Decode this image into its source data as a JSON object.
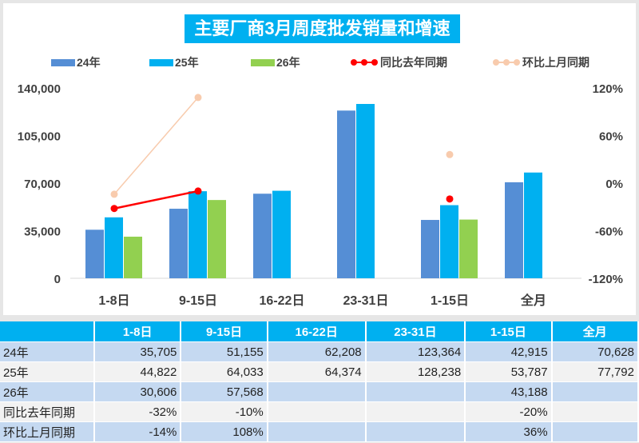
{
  "chart_data": {
    "type": "bar",
    "title": "主要厂商3月周度批发销量和增速",
    "categories": [
      "1-8日",
      "9-15日",
      "16-22日",
      "23-31日",
      "1-15日",
      "全月"
    ],
    "series": [
      {
        "name": "24年",
        "type": "bar",
        "axis": "left",
        "color": "#558ed5",
        "values": [
          35705,
          51155,
          62208,
          123364,
          42915,
          70628
        ]
      },
      {
        "name": "25年",
        "type": "bar",
        "axis": "left",
        "color": "#00b0f0",
        "values": [
          44822,
          64033,
          64374,
          128238,
          53787,
          77792
        ]
      },
      {
        "name": "26年",
        "type": "bar",
        "axis": "left",
        "color": "#92d050",
        "values": [
          30606,
          57568,
          null,
          null,
          43188,
          null
        ]
      },
      {
        "name": "同比去年同期",
        "type": "line",
        "axis": "right",
        "color": "#ff0000",
        "values": [
          -32,
          -10,
          null,
          null,
          -20,
          null
        ]
      },
      {
        "name": "环比上月同期",
        "type": "line",
        "axis": "right",
        "color": "#f8cbad",
        "values": [
          -14,
          108,
          null,
          null,
          36,
          null
        ]
      }
    ],
    "y_left": {
      "range": [
        0,
        140000
      ],
      "ticks": [
        "0",
        "35,000",
        "70,000",
        "105,000",
        "140,000"
      ]
    },
    "y_right": {
      "range": [
        -120,
        120
      ],
      "ticks": [
        "-120%",
        "-60%",
        "0%",
        "60%",
        "120%"
      ]
    },
    "legend": "top",
    "grid": false
  },
  "table": {
    "header": [
      "",
      "1-8日",
      "9-15日",
      "16-22日",
      "23-31日",
      "1-15日",
      "全月"
    ],
    "rows": [
      [
        "24年",
        "35,705",
        "51,155",
        "62,208",
        "123,364",
        "42,915",
        "70,628"
      ],
      [
        "25年",
        "44,822",
        "64,033",
        "64,374",
        "128,238",
        "53,787",
        "77,792"
      ],
      [
        "26年",
        "30,606",
        "57,568",
        "",
        "",
        "43,188",
        ""
      ],
      [
        "同比去年同期",
        "-32%",
        "-10%",
        "",
        "",
        "-20%",
        ""
      ],
      [
        "环比上月同期",
        "-14%",
        "108%",
        "",
        "",
        "36%",
        ""
      ]
    ]
  }
}
